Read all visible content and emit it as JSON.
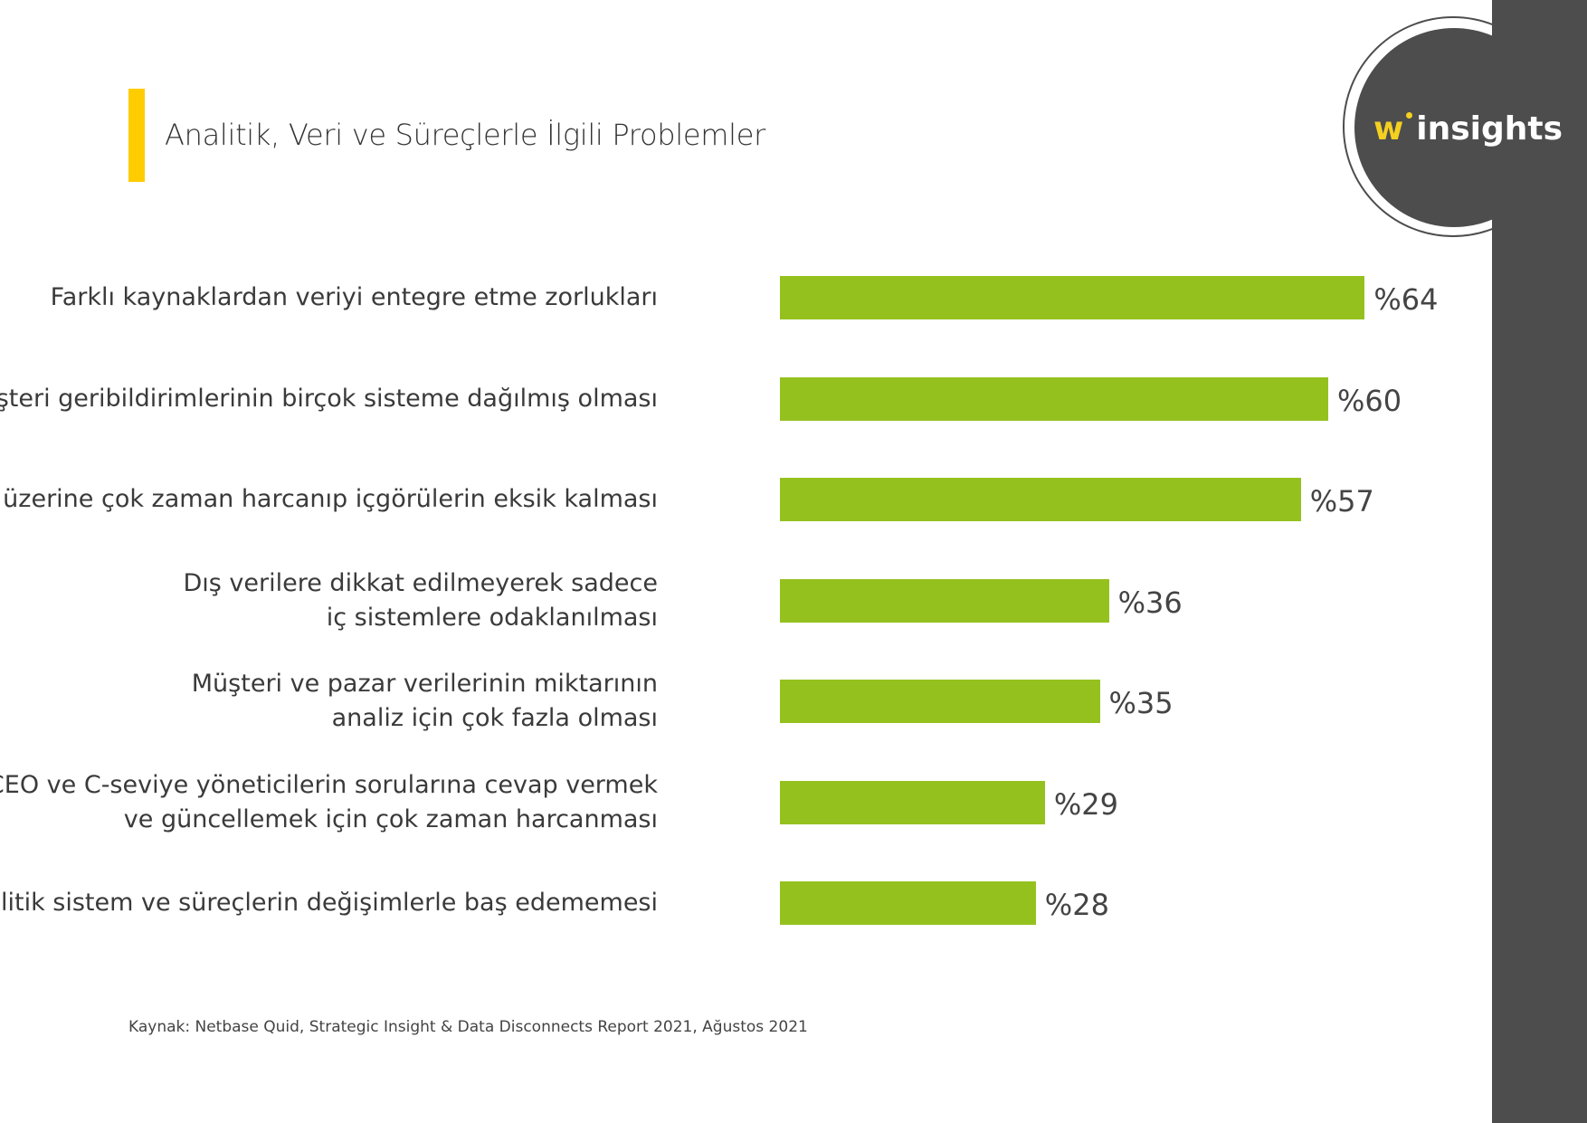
{
  "title": "Analitik, Veri ve Süreçlerle İlgili Problemler",
  "logo": {
    "w": "w",
    "text": "insights"
  },
  "colors": {
    "bar": "#95c11f",
    "accent": "#ffcc00",
    "panel": "#4d4d4d",
    "logo_w": "#f5d020"
  },
  "chart_data": {
    "type": "bar",
    "orientation": "horizontal",
    "title": "Analitik, Veri ve Süreçlerle İlgili Problemler",
    "categories": [
      "Farklı kaynaklardan veriyi entegre etme zorlukları",
      "Müşteri geribildirimlerinin birçok sisteme dağılmış olması",
      "Veri üzerine çok zaman harcanıp içgörülerin eksik kalması",
      "Dış verilere dikkat edilmeyerek sadece\niç sistemlere odaklanılması",
      "Müşteri ve pazar verilerinin miktarının\nanaliz için çok fazla olması",
      "CEO ve C-seviye yöneticilerin sorularına cevap vermek\nve güncellemek için çok zaman harcanması",
      "Analitik sistem ve süreçlerin değişimlerle baş edememesi"
    ],
    "values": [
      64,
      60,
      57,
      36,
      35,
      29,
      28
    ],
    "value_labels": [
      "%64",
      "%60",
      "%57",
      "%36",
      "%35",
      "%29",
      "%28"
    ],
    "xlim": [
      0,
      100
    ],
    "grid": false,
    "axes_visible": false
  },
  "source": "Kaynak: Netbase Quid, Strategic Insight & Data Disconnects Report 2021, Ağustos 2021"
}
